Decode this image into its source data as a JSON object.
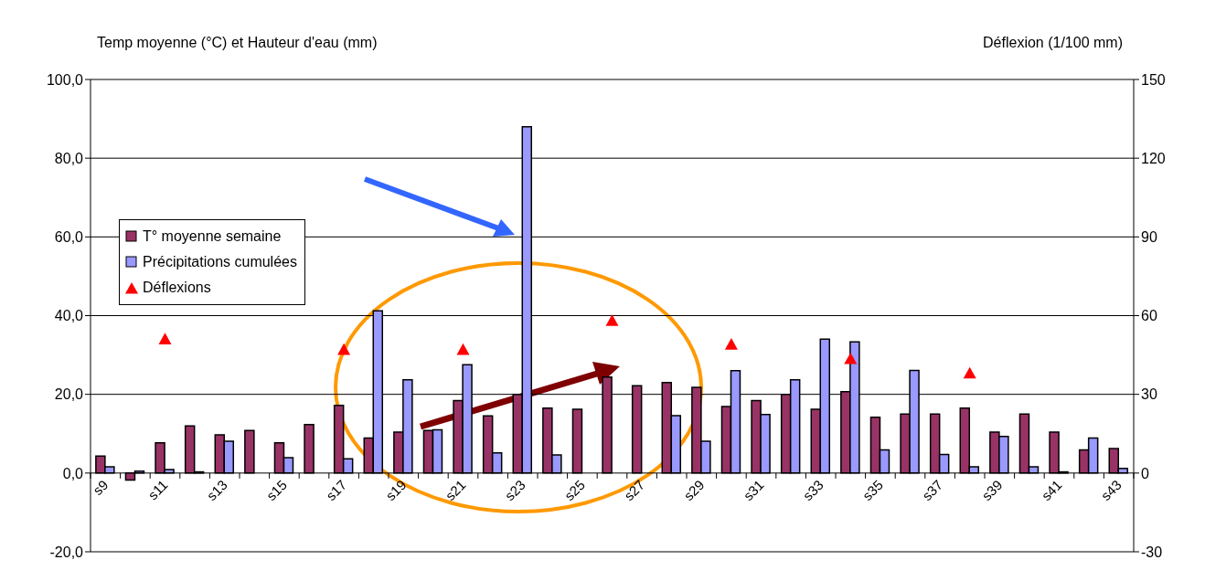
{
  "chart_data": {
    "type": "bar",
    "ylabel": "Temp moyenne (°C) et Hauteur d'eau (mm)",
    "y2label": "Déflexion (1/100 mm)",
    "categories": [
      "s9",
      null,
      "s11",
      null,
      "s13",
      null,
      "s15",
      null,
      "s17",
      null,
      "s19",
      null,
      "s21",
      null,
      "s23",
      null,
      "s25",
      null,
      "s27",
      null,
      "s29",
      null,
      "s31",
      null,
      "s33",
      null,
      "s35",
      null,
      "s37",
      null,
      "s39",
      null,
      "s41",
      null,
      "s43"
    ],
    "series": [
      {
        "name": "T° moyenne semaine",
        "color": "#993366",
        "values": [
          4.3,
          -1.8,
          7.7,
          12.0,
          9.7,
          10.8,
          7.7,
          12.3,
          17.2,
          8.9,
          10.4,
          10.8,
          18.4,
          14.5,
          20.0,
          16.5,
          16.2,
          24.4,
          22.2,
          23.0,
          21.8,
          16.9,
          18.4,
          20.0,
          16.2,
          20.7,
          14.2,
          15.0,
          15.0,
          16.5,
          10.4,
          15.0,
          10.4,
          5.9,
          6.2
        ]
      },
      {
        "name": "Précipitations cumulées",
        "color": "#9999ff",
        "values": [
          1.6,
          0.5,
          0.9,
          0.3,
          8.1,
          null,
          3.9,
          null,
          3.6,
          41.2,
          23.7,
          11.0,
          27.5,
          5.1,
          88.0,
          4.6,
          null,
          null,
          null,
          14.6,
          8.1,
          26.0,
          14.9,
          23.7,
          34.0,
          33.3,
          5.9,
          26.1,
          4.7,
          1.6,
          9.3,
          1.6,
          0.3,
          8.9,
          1.2
        ]
      },
      {
        "name": "Déflexions",
        "type": "scatter",
        "axis": "y2",
        "color": "#ff0000",
        "values": [
          null,
          null,
          51,
          null,
          null,
          null,
          null,
          null,
          47,
          null,
          null,
          null,
          47,
          null,
          null,
          null,
          null,
          58,
          null,
          null,
          null,
          49,
          null,
          null,
          null,
          43.5,
          null,
          null,
          null,
          38,
          null,
          null,
          null,
          null,
          null
        ]
      }
    ],
    "ylim": [
      -20,
      100
    ],
    "yticks": [
      {
        "value": -20,
        "label": "-20,0"
      },
      {
        "value": 0,
        "label": "0,0"
      },
      {
        "value": 20,
        "label": "20,0"
      },
      {
        "value": 40,
        "label": "40,0"
      },
      {
        "value": 60,
        "label": "60,0"
      },
      {
        "value": 80,
        "label": "80,0"
      },
      {
        "value": 100,
        "label": "100,0"
      }
    ],
    "y2lim": [
      -30,
      150
    ],
    "y2ticks": [
      -30,
      0,
      30,
      60,
      90,
      120,
      150
    ],
    "grid": "y",
    "legend": "left",
    "marker": "triangle"
  }
}
